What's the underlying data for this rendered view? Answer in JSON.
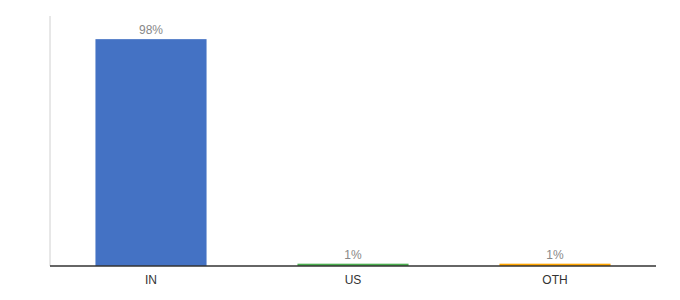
{
  "chart_data": {
    "type": "bar",
    "categories": [
      "IN",
      "US",
      "OTH"
    ],
    "values": [
      98,
      1,
      1
    ],
    "value_labels": [
      "98%",
      "1%",
      "1%"
    ],
    "colors": [
      "#4472C4",
      "#4CAF50",
      "#FFA500"
    ],
    "ylim": [
      0,
      108
    ],
    "data_labels": true,
    "tick_labels": "x"
  }
}
